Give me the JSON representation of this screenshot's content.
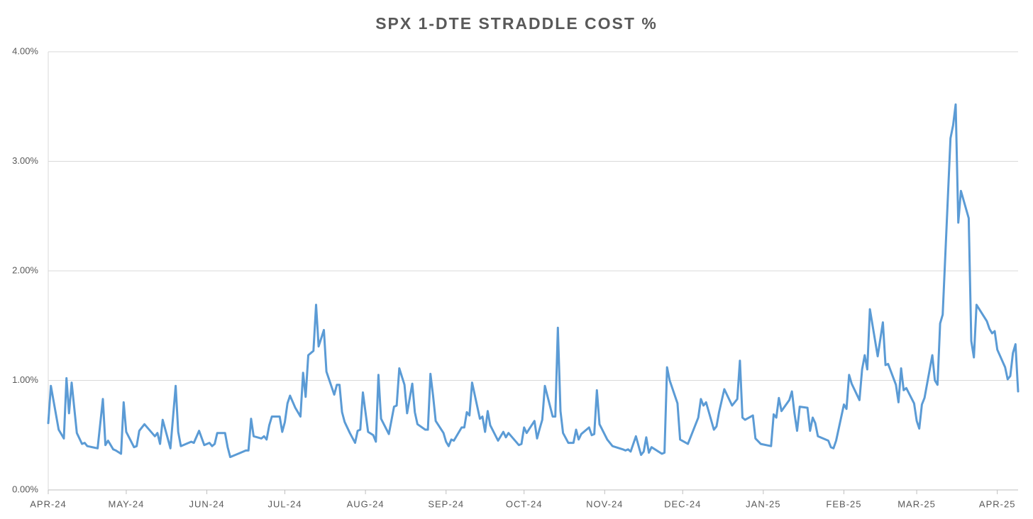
{
  "chart_data": {
    "type": "line",
    "title": "SPX 1-DTE STRADDLE COST %",
    "color": "#5b9bd5",
    "grid": true,
    "xlim": [
      0,
      373
    ],
    "xticks": [
      {
        "value": 0,
        "label": "APR-24"
      },
      {
        "value": 30,
        "label": "MAY-24"
      },
      {
        "value": 61,
        "label": "JUN-24"
      },
      {
        "value": 91,
        "label": "JUL-24"
      },
      {
        "value": 122,
        "label": "AUG-24"
      },
      {
        "value": 153,
        "label": "SEP-24"
      },
      {
        "value": 183,
        "label": "OCT-24"
      },
      {
        "value": 214,
        "label": "NOV-24"
      },
      {
        "value": 244,
        "label": "DEC-24"
      },
      {
        "value": 275,
        "label": "JAN-25"
      },
      {
        "value": 306,
        "label": "FEB-25"
      },
      {
        "value": 334,
        "label": "MAR-25"
      },
      {
        "value": 365,
        "label": "APR-25"
      }
    ],
    "ylim": [
      0,
      4
    ],
    "yticks": [
      {
        "value": 0,
        "label": "0.00%"
      },
      {
        "value": 1,
        "label": "1.00%"
      },
      {
        "value": 2,
        "label": "2.00%"
      },
      {
        "value": 3,
        "label": "3.00%"
      },
      {
        "value": 4,
        "label": "4.00%"
      }
    ],
    "x": [
      0,
      1,
      4,
      6,
      7,
      8,
      9,
      11,
      13,
      14,
      15,
      19,
      21,
      22,
      23,
      25,
      26,
      28,
      29,
      30,
      33,
      34,
      35,
      37,
      41,
      42,
      43,
      44,
      47,
      49,
      50,
      51,
      55,
      56,
      58,
      60,
      62,
      63,
      64,
      65,
      68,
      69,
      70,
      74,
      76,
      77,
      78,
      79,
      82,
      83,
      84,
      85,
      86,
      89,
      90,
      91,
      92,
      93,
      95,
      97,
      98,
      99,
      100,
      102,
      103,
      104,
      106,
      107,
      110,
      111,
      112,
      113,
      114,
      116,
      118,
      119,
      120,
      121,
      123,
      125,
      126,
      127,
      128,
      131,
      133,
      134,
      135,
      137,
      138,
      140,
      141,
      142,
      145,
      146,
      147,
      148,
      149,
      152,
      153,
      154,
      155,
      156,
      159,
      160,
      161,
      162,
      163,
      166,
      167,
      168,
      169,
      170,
      173,
      175,
      176,
      177,
      181,
      182,
      183,
      184,
      187,
      188,
      189,
      190,
      191,
      194,
      195,
      196,
      197,
      198,
      200,
      202,
      203,
      204,
      205,
      208,
      209,
      210,
      211,
      212,
      215,
      217,
      221,
      222,
      223,
      224,
      226,
      228,
      229,
      230,
      231,
      232,
      236,
      237,
      238,
      239,
      242,
      243,
      246,
      250,
      251,
      252,
      253,
      256,
      257,
      258,
      260,
      263,
      265,
      266,
      267,
      268,
      271,
      272,
      274,
      278,
      279,
      280,
      281,
      282,
      285,
      286,
      287,
      288,
      289,
      292,
      293,
      294,
      295,
      296,
      300,
      301,
      302,
      303,
      306,
      307,
      308,
      309,
      312,
      313,
      314,
      315,
      316,
      319,
      321,
      322,
      323,
      326,
      327,
      328,
      329,
      330,
      333,
      334,
      335,
      336,
      337,
      340,
      341,
      342,
      343,
      344,
      347,
      348,
      349,
      350,
      351,
      354,
      355,
      356,
      357,
      361,
      362,
      363,
      364,
      365,
      368,
      369,
      370,
      371,
      372,
      373
    ],
    "values": [
      0.61,
      0.95,
      0.55,
      0.47,
      1.02,
      0.7,
      0.98,
      0.52,
      0.42,
      0.43,
      0.4,
      0.38,
      0.83,
      0.41,
      0.45,
      0.37,
      0.36,
      0.33,
      0.8,
      0.53,
      0.39,
      0.4,
      0.54,
      0.6,
      0.49,
      0.52,
      0.42,
      0.64,
      0.38,
      0.95,
      0.53,
      0.4,
      0.44,
      0.43,
      0.54,
      0.41,
      0.43,
      0.4,
      0.42,
      0.52,
      0.52,
      0.39,
      0.3,
      0.34,
      0.36,
      0.36,
      0.65,
      0.49,
      0.47,
      0.49,
      0.46,
      0.59,
      0.67,
      0.67,
      0.53,
      0.62,
      0.79,
      0.86,
      0.75,
      0.67,
      1.07,
      0.85,
      1.23,
      1.27,
      1.69,
      1.31,
      1.46,
      1.08,
      0.87,
      0.96,
      0.96,
      0.71,
      0.62,
      0.52,
      0.43,
      0.54,
      0.55,
      0.89,
      0.53,
      0.5,
      0.44,
      1.05,
      0.65,
      0.51,
      0.76,
      0.77,
      1.11,
      0.96,
      0.7,
      0.97,
      0.71,
      0.6,
      0.55,
      0.55,
      1.06,
      0.86,
      0.63,
      0.52,
      0.44,
      0.4,
      0.46,
      0.45,
      0.57,
      0.57,
      0.71,
      0.68,
      0.98,
      0.65,
      0.67,
      0.53,
      0.72,
      0.59,
      0.45,
      0.53,
      0.48,
      0.52,
      0.41,
      0.42,
      0.57,
      0.52,
      0.63,
      0.47,
      0.56,
      0.64,
      0.95,
      0.67,
      0.67,
      1.48,
      0.72,
      0.52,
      0.43,
      0.43,
      0.55,
      0.46,
      0.51,
      0.57,
      0.5,
      0.51,
      0.91,
      0.6,
      0.46,
      0.4,
      0.37,
      0.36,
      0.37,
      0.35,
      0.49,
      0.32,
      0.35,
      0.48,
      0.34,
      0.39,
      0.33,
      0.34,
      1.12,
      1.0,
      0.79,
      0.46,
      0.42,
      0.66,
      0.83,
      0.77,
      0.8,
      0.55,
      0.58,
      0.71,
      0.92,
      0.77,
      0.83,
      1.18,
      0.66,
      0.64,
      0.68,
      0.47,
      0.42,
      0.4,
      0.69,
      0.66,
      0.84,
      0.72,
      0.82,
      0.9,
      0.7,
      0.54,
      0.76,
      0.75,
      0.54,
      0.66,
      0.61,
      0.49,
      0.45,
      0.39,
      0.38,
      0.45,
      0.78,
      0.74,
      1.05,
      0.97,
      0.82,
      1.1,
      1.23,
      1.1,
      1.65,
      1.22,
      1.53,
      1.14,
      1.15,
      0.96,
      0.8,
      1.11,
      0.91,
      0.93,
      0.79,
      0.63,
      0.56,
      0.78,
      0.84,
      1.23,
      1.0,
      0.96,
      1.52,
      1.6,
      3.21,
      3.33,
      3.52,
      2.44,
      2.73,
      2.48,
      1.36,
      1.21,
      1.69,
      1.54,
      1.47,
      1.43,
      1.45,
      1.28,
      1.12,
      1.01,
      1.04,
      1.25,
      1.33,
      0.9
    ]
  }
}
